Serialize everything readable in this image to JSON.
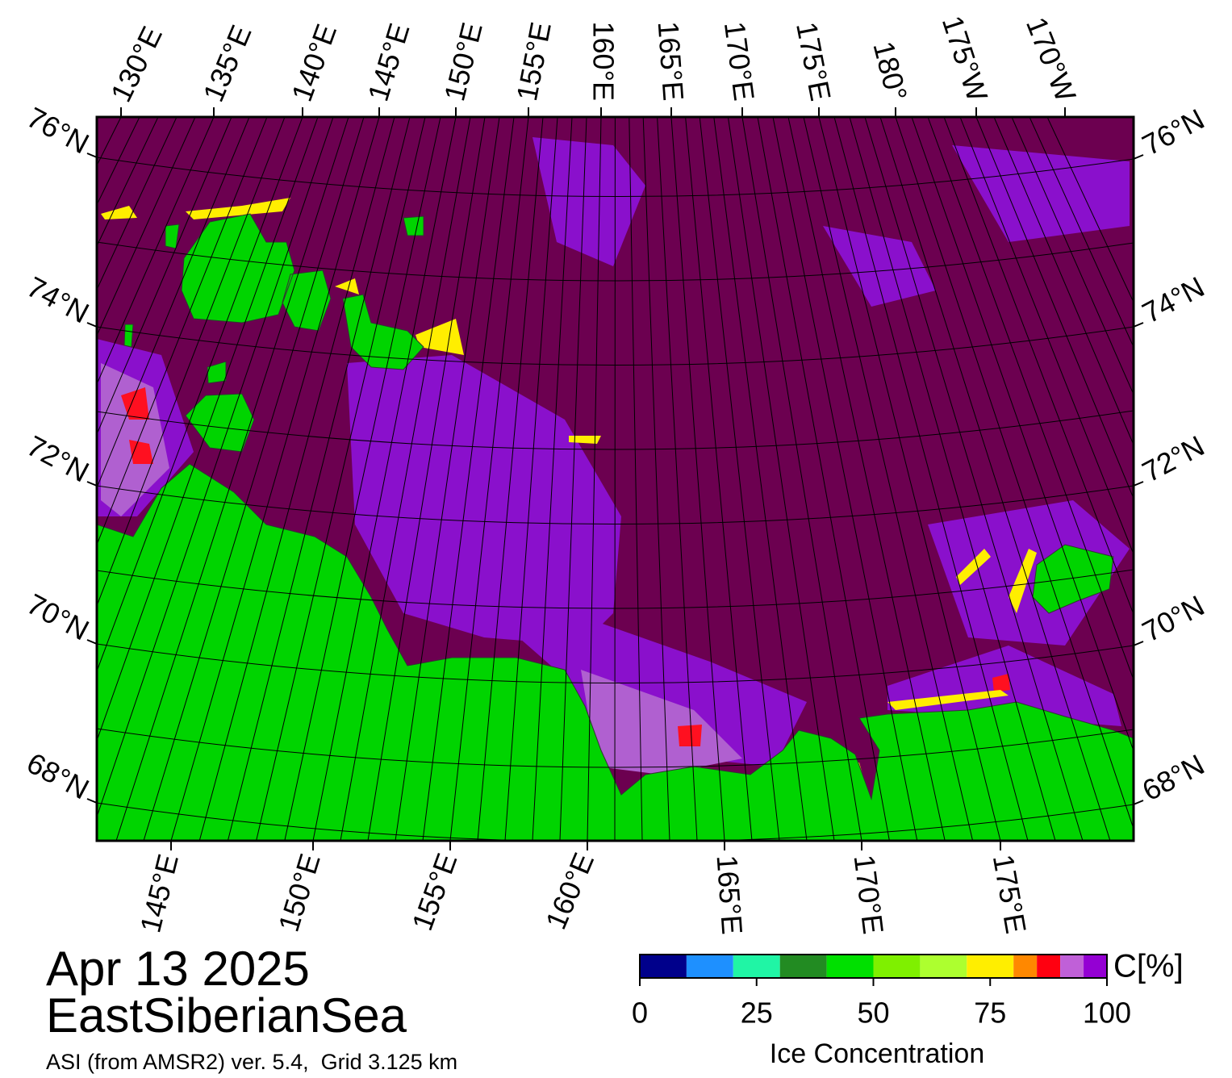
{
  "header": {
    "date": "Apr 13 2025",
    "region": "EastSiberianSea",
    "source": "ASI (from AMSR2) ver. 5.4,  Grid 3.125 km"
  },
  "map": {
    "lat_labels_left": [
      "76°N",
      "74°N",
      "72°N",
      "70°N",
      "68°N"
    ],
    "lat_labels_right": [
      "76°N",
      "74°N",
      "72°N",
      "70°N",
      "68°N"
    ],
    "lon_labels_top": [
      "130°E",
      "135°E",
      "140°E",
      "145°E",
      "150°E",
      "155°E",
      "160°E",
      "165°E",
      "170°E",
      "175°E",
      "180°",
      "175°W",
      "170°W"
    ],
    "lon_labels_bottom": [
      "145°E",
      "150°E",
      "155°E",
      "160°E",
      "165°E",
      "170°E",
      "175°E"
    ]
  },
  "colorbar": {
    "unit": "C[%]",
    "label": "Ice Concentration",
    "bounds": [
      0,
      10,
      20,
      30,
      40,
      50,
      60,
      70,
      80,
      85,
      90,
      95,
      100
    ],
    "colors": [
      "#00008b",
      "#1e90ff",
      "#20f5a5",
      "#228b22",
      "#00e000",
      "#7ff000",
      "#adff2f",
      "#ffee00",
      "#ff8800",
      "#ff0010",
      "#c060d8",
      "#9400d3"
    ],
    "ticks": [
      0,
      25,
      50,
      75,
      100
    ]
  }
}
